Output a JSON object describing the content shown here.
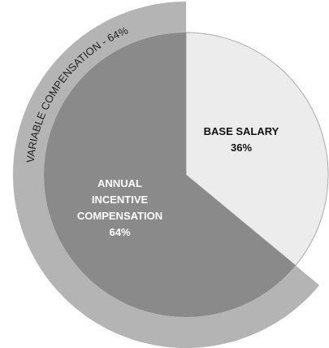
{
  "chart_data": {
    "type": "pie",
    "categories": [
      "BASE SALARY",
      "ANNUAL INCENTIVE COMPENSATION"
    ],
    "values": [
      36,
      64
    ],
    "value_labels": [
      "36%",
      "64%"
    ],
    "colors": [
      "#ececec",
      "#8a8a8a"
    ],
    "outer_ring": {
      "label": "VARIABLE COMPENSATION - 64%",
      "value": 64,
      "color": "#b4b4b4"
    }
  }
}
